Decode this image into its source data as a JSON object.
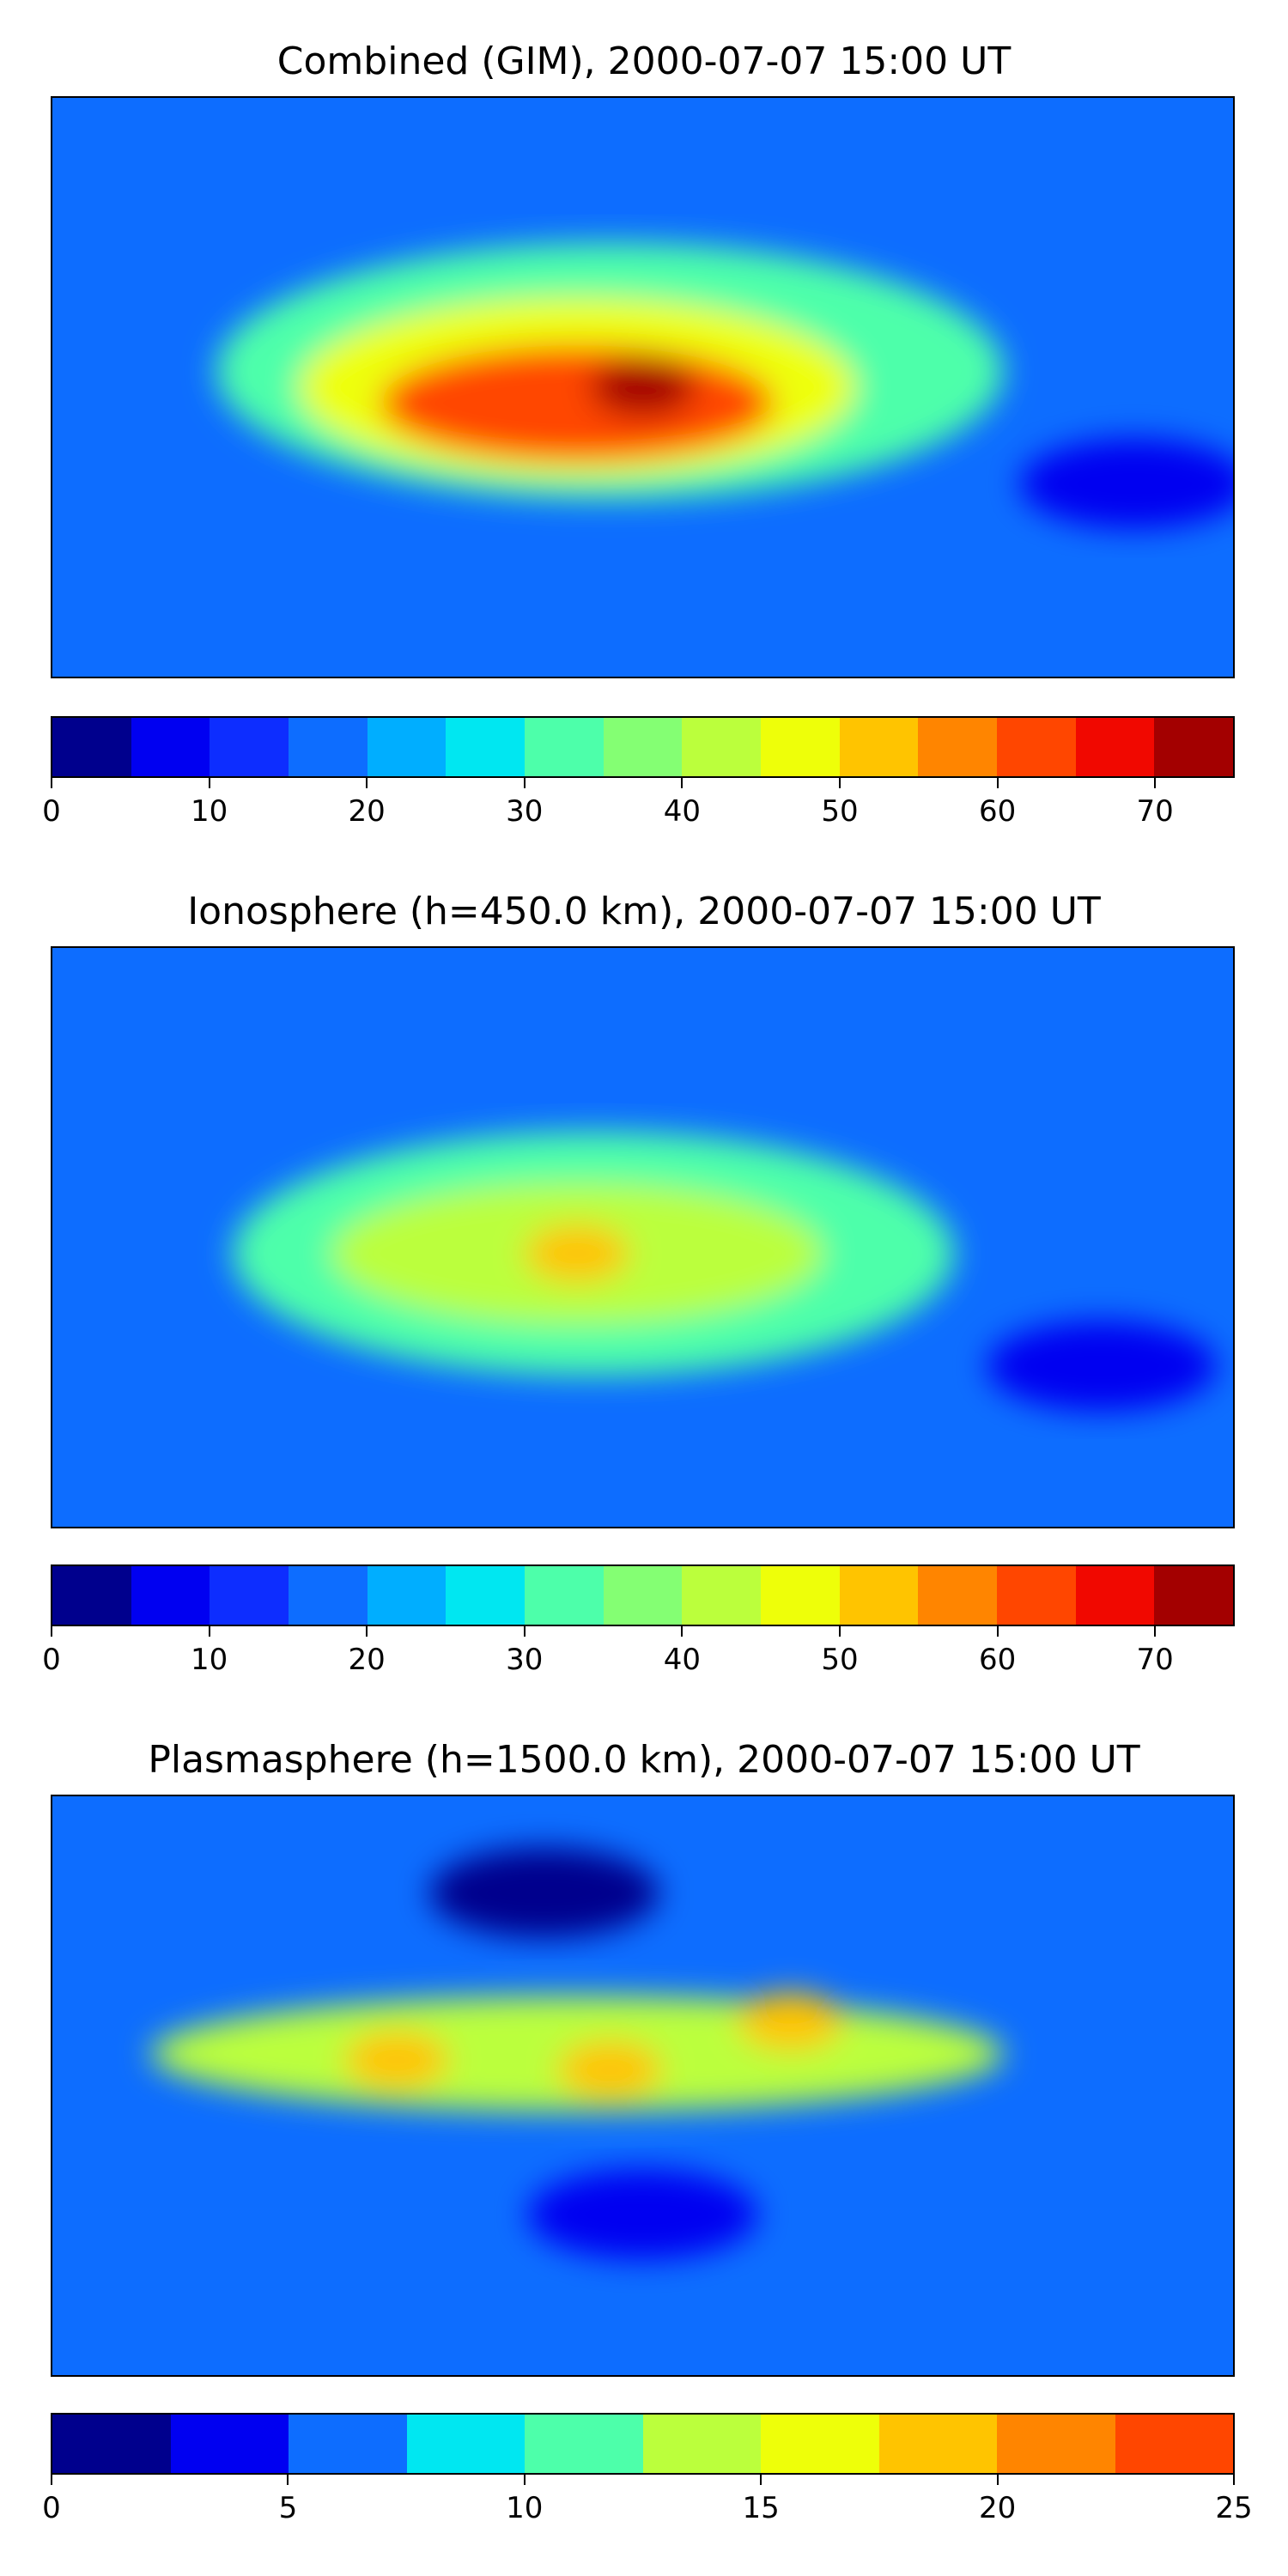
{
  "chart_data": [
    {
      "type": "heatmap",
      "title": "Combined (GIM), 2000-07-07 15:00 UT",
      "xlabel": "",
      "ylabel": "",
      "colorbar": {
        "range": [
          0,
          75
        ],
        "levels": [
          0,
          5,
          10,
          15,
          20,
          25,
          30,
          35,
          40,
          45,
          50,
          55,
          60,
          65,
          70,
          75
        ],
        "tick_labels": [
          "0",
          "10",
          "20",
          "30",
          "40",
          "50",
          "60",
          "70"
        ],
        "colors": [
          "#00008d",
          "#0000f1",
          "#0d2dff",
          "#0d6dff",
          "#00aeff",
          "#00e7f1",
          "#4dffaa",
          "#84ff73",
          "#bbff3c",
          "#eeff09",
          "#ffc400",
          "#ff8500",
          "#ff4600",
          "#f10800",
          "#a30000"
        ]
      },
      "features": [
        {
          "type": "max",
          "lon": 0,
          "lat": 0,
          "value": 72
        },
        {
          "type": "region",
          "lon": -20,
          "lat": -5,
          "rx": 60,
          "ry": 18,
          "value": 60
        },
        {
          "type": "region",
          "lon": -20,
          "lat": 0,
          "rx": 85,
          "ry": 28,
          "value": 45
        },
        {
          "type": "region",
          "lon": -10,
          "lat": 5,
          "rx": 120,
          "ry": 40,
          "value": 30
        },
        {
          "type": "min",
          "lon": 150,
          "lat": -30,
          "value": 5
        }
      ],
      "grid": false,
      "legend": "colorbar below"
    },
    {
      "type": "heatmap",
      "title": "Ionosphere  (h=450.0 km), 2000-07-07 15:00 UT",
      "xlabel": "",
      "ylabel": "",
      "colorbar": {
        "range": [
          0,
          75
        ],
        "levels": [
          0,
          5,
          10,
          15,
          20,
          25,
          30,
          35,
          40,
          45,
          50,
          55,
          60,
          65,
          70,
          75
        ],
        "tick_labels": [
          "0",
          "10",
          "20",
          "30",
          "40",
          "50",
          "60",
          "70"
        ],
        "colors": [
          "#00008d",
          "#0000f1",
          "#0d2dff",
          "#0d6dff",
          "#00aeff",
          "#00e7f1",
          "#4dffaa",
          "#84ff73",
          "#bbff3c",
          "#eeff09",
          "#ffc400",
          "#ff8500",
          "#ff4600",
          "#f10800",
          "#a30000"
        ]
      },
      "features": [
        {
          "type": "max",
          "lon": -20,
          "lat": -5,
          "value": 52
        },
        {
          "type": "region",
          "lon": -20,
          "lat": -5,
          "rx": 75,
          "ry": 22,
          "value": 40
        },
        {
          "type": "region",
          "lon": -15,
          "lat": -5,
          "rx": 110,
          "ry": 38,
          "value": 30
        },
        {
          "type": "min",
          "lon": 140,
          "lat": -40,
          "value": 5
        }
      ],
      "grid": false,
      "legend": "colorbar below"
    },
    {
      "type": "heatmap",
      "title": "Plasmasphere (h=1500.0 km), 2000-07-07 15:00 UT",
      "xlabel": "",
      "ylabel": "",
      "colorbar": {
        "range": [
          0,
          25
        ],
        "levels": [
          0,
          2.5,
          5,
          7.5,
          10,
          12.5,
          15,
          17.5,
          20,
          22.5,
          25
        ],
        "tick_labels": [
          "0",
          "5",
          "10",
          "15",
          "20",
          "25"
        ],
        "colors": [
          "#00008d",
          "#0000f1",
          "#0d6dff",
          "#00e7f1",
          "#4dffaa",
          "#bbff3c",
          "#eeff09",
          "#ffc400",
          "#ff8500",
          "#ff4600"
        ]
      },
      "features": [
        {
          "type": "max",
          "lon": 45,
          "lat": 20,
          "value": 19
        },
        {
          "type": "max",
          "lon": -10,
          "lat": 5,
          "value": 18
        },
        {
          "type": "max",
          "lon": -75,
          "lat": 8,
          "value": 18
        },
        {
          "type": "region",
          "lon": -20,
          "lat": 10,
          "rx": 130,
          "ry": 18,
          "value": 14
        },
        {
          "type": "min",
          "lon": -30,
          "lat": 60,
          "value": 2
        },
        {
          "type": "min",
          "lon": 0,
          "lat": -40,
          "value": 3
        }
      ],
      "grid": false,
      "legend": "colorbar below"
    }
  ]
}
